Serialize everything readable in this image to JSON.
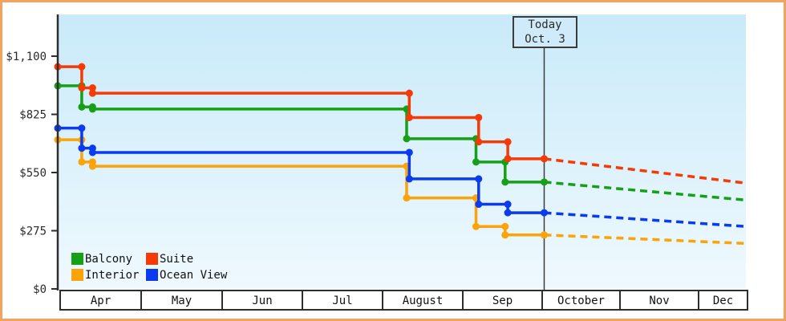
{
  "chart_data": {
    "type": "line",
    "description": "Stepped price history chart with dashed future projections per cabin category",
    "currency": "USD",
    "y_ticks": [
      {
        "label": "$1,100",
        "value": 1100
      },
      {
        "label": "$825",
        "value": 825
      },
      {
        "label": "$550",
        "value": 550
      },
      {
        "label": "$275",
        "value": 275
      },
      {
        "label": "$0",
        "value": 0
      }
    ],
    "x_month_labels": [
      "Apr",
      "May",
      "Jun",
      "Jul",
      "August",
      "Sep",
      "October",
      "Nov",
      "Dec"
    ],
    "today_marker": {
      "line1": "Today",
      "line2": "Oct. 3"
    },
    "legend_position": "bottom-left",
    "grid": false,
    "series": [
      {
        "name": "Balcony",
        "color": "#16a016",
        "points": [
          {
            "date": "Mar 29",
            "price": 960
          },
          {
            "date": "Apr 9",
            "price": 860
          },
          {
            "date": "Apr 13",
            "price": 850
          },
          {
            "date": "Aug 10",
            "price": 710
          },
          {
            "date": "Sep 6",
            "price": 600
          },
          {
            "date": "Sep 17",
            "price": 505
          }
        ],
        "current_price": 505,
        "projected": {
          "date": "Dec 31",
          "price": 420
        }
      },
      {
        "name": "Suite",
        "color": "#f53a08",
        "points": [
          {
            "date": "Mar 29",
            "price": 1050
          },
          {
            "date": "Apr 9",
            "price": 950
          },
          {
            "date": "Apr 13",
            "price": 925
          },
          {
            "date": "Aug 11",
            "price": 810
          },
          {
            "date": "Sep 7",
            "price": 695
          },
          {
            "date": "Sep 18",
            "price": 615
          }
        ],
        "current_price": 615,
        "projected": {
          "date": "Dec 31",
          "price": 500
        }
      },
      {
        "name": "Interior",
        "color": "#fba307",
        "points": [
          {
            "date": "Mar 29",
            "price": 705
          },
          {
            "date": "Apr 9",
            "price": 600
          },
          {
            "date": "Apr 13",
            "price": 580
          },
          {
            "date": "Aug 10",
            "price": 430
          },
          {
            "date": "Sep 6",
            "price": 295
          },
          {
            "date": "Sep 17",
            "price": 255
          }
        ],
        "current_price": 255,
        "projected": {
          "date": "Dec 31",
          "price": 215
        }
      },
      {
        "name": "Ocean View",
        "color": "#0a3bf0",
        "points": [
          {
            "date": "Mar 29",
            "price": 760
          },
          {
            "date": "Apr 9",
            "price": 665
          },
          {
            "date": "Apr 13",
            "price": 645
          },
          {
            "date": "Aug 11",
            "price": 520
          },
          {
            "date": "Sep 7",
            "price": 400
          },
          {
            "date": "Sep 18",
            "price": 360
          }
        ],
        "current_price": 360,
        "projected": {
          "date": "Dec 31",
          "price": 295
        }
      }
    ],
    "legend": [
      {
        "label": "Balcony",
        "color": "#16a016"
      },
      {
        "label": "Suite",
        "color": "#f53a08"
      },
      {
        "label": "Interior",
        "color": "#fba307"
      },
      {
        "label": "Ocean View",
        "color": "#0a3bf0"
      }
    ],
    "colors": {
      "plot_bg_top": "#c9eaf9",
      "plot_bg_bottom": "#eff9fe",
      "axis": "#2e2e2e",
      "frame_border": "#f2a35c",
      "today_line": "#3c3c3c",
      "text": "#2b2b2b"
    }
  }
}
